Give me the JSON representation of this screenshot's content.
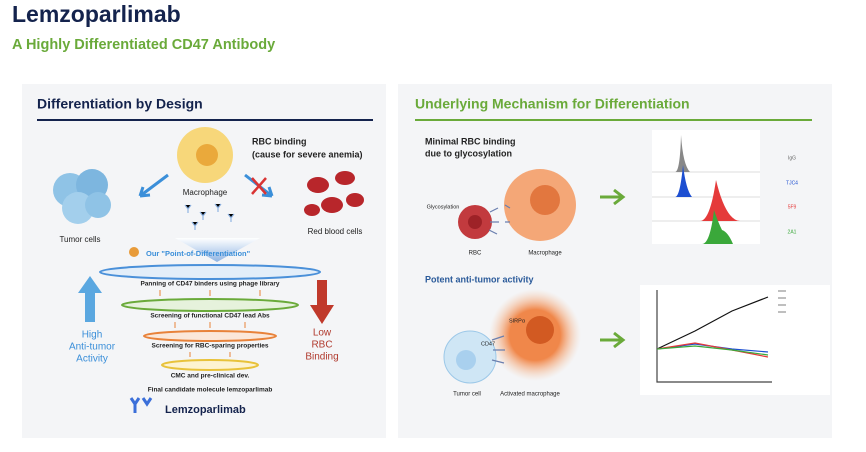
{
  "header": {
    "title": "Lemzoparlimab",
    "subtitle": "A Highly Differentiated CD47 Antibody"
  },
  "left_panel": {
    "heading": "Differentiation by Design",
    "rbc_binding": [
      "RBC binding",
      "(cause for severe anemia)"
    ],
    "macrophage": "Macrophage",
    "tumor_cells": "Tumor cells",
    "red_blood_cells": "Red blood cells",
    "point_of_differentiation": "Our \"Point-of-Differentiation\"",
    "funnel_steps": [
      "Panning of CD47 binders using phage library",
      "Screening of functional CD47 lead Abs",
      "Screening for RBC-sparing properties",
      "CMC and pre-clinical dev.",
      "Final candidate molecule lemzoparlimab"
    ],
    "high_activity": [
      "High",
      "Anti-tumor",
      "Activity"
    ],
    "low_binding": [
      "Low",
      "RBC",
      "Binding"
    ],
    "molecule": "Lemzoparlimab"
  },
  "right_panel": {
    "heading": "Underlying Mechanism for Differentiation",
    "rbc_section": {
      "title": [
        "Minimal RBC binding",
        "due to glycosylation"
      ],
      "glycosylation": "Glycosylation",
      "rbc": "RBC",
      "macrophage": "Macrophage",
      "histogram_labels": [
        "IgG",
        "TJC4",
        "5F9",
        "2A1"
      ]
    },
    "tumor_section": {
      "title": "Potent anti-tumor activity",
      "sirpa": "SIRPα",
      "cd47": "CD47",
      "tumor_cell": "Tumor cell",
      "activated_macrophage": "Activated macrophage"
    }
  }
}
